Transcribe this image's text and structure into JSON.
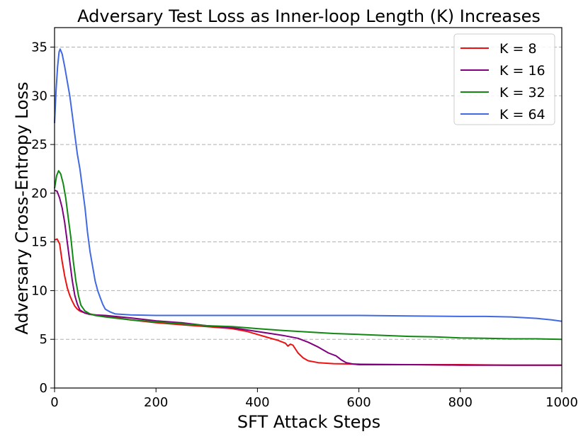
{
  "chart_data": {
    "type": "line",
    "title": "Adversary Test Loss as Inner-loop Length (K) Increases",
    "xlabel": "SFT Attack Steps",
    "ylabel": "Adversary Cross-Entropy Loss",
    "xlim": [
      0,
      1000
    ],
    "ylim": [
      0,
      37
    ],
    "xticks": [
      0,
      200,
      400,
      600,
      800,
      1000
    ],
    "yticks": [
      0,
      5,
      10,
      15,
      20,
      25,
      30,
      35
    ],
    "grid": "y-dashed",
    "legend_position": "top-right",
    "series": [
      {
        "name": "K = 8",
        "color": "#ee1111",
        "points": [
          [
            0,
            15.2
          ],
          [
            5,
            15.3
          ],
          [
            10,
            14.8
          ],
          [
            15,
            13.0
          ],
          [
            20,
            11.5
          ],
          [
            25,
            10.3
          ],
          [
            30,
            9.5
          ],
          [
            35,
            8.9
          ],
          [
            40,
            8.4
          ],
          [
            45,
            8.1
          ],
          [
            50,
            7.9
          ],
          [
            60,
            7.7
          ],
          [
            70,
            7.6
          ],
          [
            80,
            7.5
          ],
          [
            100,
            7.4
          ],
          [
            150,
            7.0
          ],
          [
            200,
            6.7
          ],
          [
            250,
            6.5
          ],
          [
            300,
            6.3
          ],
          [
            350,
            6.1
          ],
          [
            380,
            5.8
          ],
          [
            400,
            5.5
          ],
          [
            420,
            5.2
          ],
          [
            440,
            4.9
          ],
          [
            455,
            4.6
          ],
          [
            460,
            4.3
          ],
          [
            465,
            4.5
          ],
          [
            470,
            4.4
          ],
          [
            475,
            4.0
          ],
          [
            480,
            3.6
          ],
          [
            490,
            3.1
          ],
          [
            500,
            2.8
          ],
          [
            520,
            2.6
          ],
          [
            550,
            2.5
          ],
          [
            600,
            2.45
          ],
          [
            700,
            2.4
          ],
          [
            800,
            2.4
          ],
          [
            900,
            2.35
          ],
          [
            1000,
            2.35
          ]
        ]
      },
      {
        "name": "K = 16",
        "color": "#800080",
        "points": [
          [
            0,
            20.3
          ],
          [
            5,
            20.2
          ],
          [
            10,
            19.5
          ],
          [
            15,
            18.5
          ],
          [
            20,
            17.0
          ],
          [
            25,
            15.0
          ],
          [
            30,
            13.0
          ],
          [
            35,
            11.0
          ],
          [
            40,
            9.5
          ],
          [
            45,
            8.6
          ],
          [
            50,
            8.0
          ],
          [
            60,
            7.7
          ],
          [
            70,
            7.55
          ],
          [
            80,
            7.5
          ],
          [
            100,
            7.45
          ],
          [
            150,
            7.2
          ],
          [
            200,
            6.9
          ],
          [
            250,
            6.7
          ],
          [
            300,
            6.4
          ],
          [
            350,
            6.2
          ],
          [
            400,
            5.8
          ],
          [
            450,
            5.4
          ],
          [
            480,
            5.1
          ],
          [
            500,
            4.7
          ],
          [
            520,
            4.2
          ],
          [
            540,
            3.6
          ],
          [
            555,
            3.3
          ],
          [
            565,
            2.9
          ],
          [
            575,
            2.6
          ],
          [
            590,
            2.45
          ],
          [
            600,
            2.4
          ],
          [
            700,
            2.4
          ],
          [
            800,
            2.35
          ],
          [
            900,
            2.35
          ],
          [
            1000,
            2.35
          ]
        ]
      },
      {
        "name": "K = 32",
        "color": "#118811",
        "points": [
          [
            0,
            20.5
          ],
          [
            4,
            21.8
          ],
          [
            8,
            22.3
          ],
          [
            12,
            22.0
          ],
          [
            17,
            21.0
          ],
          [
            22,
            19.5
          ],
          [
            27,
            17.5
          ],
          [
            32,
            15.5
          ],
          [
            37,
            13.0
          ],
          [
            42,
            11.0
          ],
          [
            47,
            9.5
          ],
          [
            52,
            8.5
          ],
          [
            60,
            7.9
          ],
          [
            70,
            7.6
          ],
          [
            80,
            7.45
          ],
          [
            100,
            7.3
          ],
          [
            150,
            7.0
          ],
          [
            200,
            6.8
          ],
          [
            250,
            6.6
          ],
          [
            300,
            6.4
          ],
          [
            350,
            6.3
          ],
          [
            400,
            6.1
          ],
          [
            450,
            5.9
          ],
          [
            500,
            5.75
          ],
          [
            550,
            5.6
          ],
          [
            600,
            5.5
          ],
          [
            650,
            5.4
          ],
          [
            700,
            5.3
          ],
          [
            750,
            5.25
          ],
          [
            800,
            5.15
          ],
          [
            850,
            5.1
          ],
          [
            900,
            5.05
          ],
          [
            950,
            5.05
          ],
          [
            1000,
            5.0
          ]
        ]
      },
      {
        "name": "K = 64",
        "color": "#4169e1",
        "points": [
          [
            0,
            27.2
          ],
          [
            3,
            30.5
          ],
          [
            6,
            33.0
          ],
          [
            9,
            34.5
          ],
          [
            11,
            34.8
          ],
          [
            15,
            34.3
          ],
          [
            20,
            33.0
          ],
          [
            25,
            31.5
          ],
          [
            30,
            30.0
          ],
          [
            35,
            28.0
          ],
          [
            40,
            26.0
          ],
          [
            45,
            24.0
          ],
          [
            50,
            22.5
          ],
          [
            55,
            20.5
          ],
          [
            60,
            18.5
          ],
          [
            65,
            16.0
          ],
          [
            70,
            14.0
          ],
          [
            75,
            12.5
          ],
          [
            80,
            11.0
          ],
          [
            85,
            10.0
          ],
          [
            90,
            9.3
          ],
          [
            95,
            8.6
          ],
          [
            100,
            8.1
          ],
          [
            110,
            7.8
          ],
          [
            120,
            7.6
          ],
          [
            150,
            7.5
          ],
          [
            200,
            7.45
          ],
          [
            300,
            7.45
          ],
          [
            400,
            7.45
          ],
          [
            500,
            7.45
          ],
          [
            600,
            7.45
          ],
          [
            700,
            7.4
          ],
          [
            800,
            7.35
          ],
          [
            850,
            7.35
          ],
          [
            900,
            7.3
          ],
          [
            950,
            7.15
          ],
          [
            980,
            7.0
          ],
          [
            1000,
            6.85
          ]
        ]
      }
    ]
  }
}
